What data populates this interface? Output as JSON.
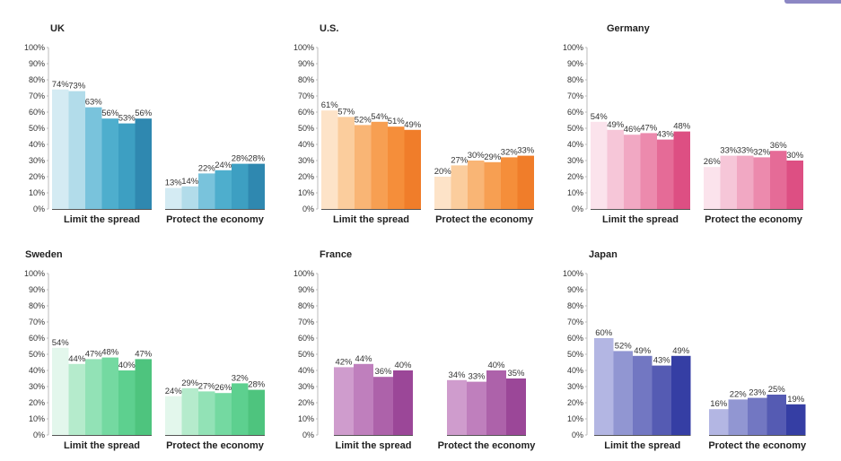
{
  "chart_data": [
    {
      "type": "bar",
      "title": "UK",
      "categories": [
        "Limit the spread",
        "Protect the economy"
      ],
      "values": [
        [
          74,
          73,
          63,
          56,
          53,
          56
        ],
        [
          13,
          14,
          22,
          24,
          28,
          28
        ]
      ],
      "value_labels": [
        [
          "74%",
          "73%",
          "63%",
          "56%",
          "53%",
          "56%"
        ],
        [
          "13%",
          "14%",
          "22%",
          "24%",
          "28%",
          "28%"
        ]
      ],
      "colors": [
        "#d4ebf3",
        "#b2dcea",
        "#79c3dc",
        "#4eaecd",
        "#3d9fc2",
        "#2f88b0"
      ],
      "yticks": [
        "0%",
        "10%",
        "20%",
        "30%",
        "40%",
        "50%",
        "60%",
        "70%",
        "80%",
        "90%",
        "100%"
      ],
      "ylim": [
        0,
        100
      ],
      "xlabel": "",
      "ylabel": ""
    },
    {
      "type": "bar",
      "title": "U.S.",
      "categories": [
        "Limit the spread",
        "Protect the economy"
      ],
      "values": [
        [
          61,
          57,
          52,
          54,
          51,
          49
        ],
        [
          20,
          27,
          30,
          29,
          32,
          33
        ]
      ],
      "value_labels": [
        [
          "61%",
          "57%",
          "52%",
          "54%",
          "51%",
          "49%"
        ],
        [
          "20%",
          "27%",
          "30%",
          "29%",
          "32%",
          "33%"
        ]
      ],
      "colors": [
        "#fde3c8",
        "#fbcd9d",
        "#f9b575",
        "#f79f52",
        "#f58e3a",
        "#f07d2a"
      ],
      "yticks": [
        "0%",
        "10%",
        "20%",
        "30%",
        "40%",
        "50%",
        "60%",
        "70%",
        "80%",
        "90%",
        "100%"
      ],
      "ylim": [
        0,
        100
      ],
      "xlabel": "",
      "ylabel": ""
    },
    {
      "type": "bar",
      "title": "Germany",
      "categories": [
        "Limit the spread",
        "Protect the economy"
      ],
      "values": [
        [
          54,
          49,
          46,
          47,
          43,
          48
        ],
        [
          26,
          33,
          33,
          32,
          36,
          30
        ]
      ],
      "value_labels": [
        [
          "54%",
          "49%",
          "46%",
          "47%",
          "43%",
          "48%"
        ],
        [
          "26%",
          "33%",
          "33%",
          "32%",
          "36%",
          "30%"
        ]
      ],
      "colors": [
        "#fbe3ec",
        "#f6c6d8",
        "#f1a8c3",
        "#ec8aad",
        "#e56b97",
        "#dd4f83"
      ],
      "yticks": [
        "0%",
        "10%",
        "20%",
        "30%",
        "40%",
        "50%",
        "60%",
        "70%",
        "80%",
        "90%",
        "100%"
      ],
      "ylim": [
        0,
        100
      ],
      "xlabel": "",
      "ylabel": ""
    },
    {
      "type": "bar",
      "title": "Sweden",
      "categories": [
        "Limit the spread",
        "Protect the economy"
      ],
      "values": [
        [
          54,
          44,
          47,
          48,
          40,
          47
        ],
        [
          24,
          29,
          27,
          26,
          32,
          28
        ]
      ],
      "value_labels": [
        [
          "54%",
          "44%",
          "47%",
          "48%",
          "40%",
          "47%"
        ],
        [
          "24%",
          "29%",
          "27%",
          "26%",
          "32%",
          "28%"
        ]
      ],
      "colors": [
        "#e3f7ec",
        "#b5ebcc",
        "#92e2b6",
        "#74d9a1",
        "#5dd08f",
        "#4ec47e"
      ],
      "yticks": [
        "0%",
        "10%",
        "20%",
        "30%",
        "40%",
        "50%",
        "60%",
        "70%",
        "80%",
        "90%",
        "100%"
      ],
      "ylim": [
        0,
        100
      ],
      "xlabel": "",
      "ylabel": ""
    },
    {
      "type": "bar",
      "title": "France",
      "categories": [
        "Limit the spread",
        "Protect the economy"
      ],
      "values": [
        [
          42,
          44,
          36,
          40
        ],
        [
          34,
          33,
          40,
          35
        ]
      ],
      "value_labels": [
        [
          "42%",
          "44%",
          "36%",
          "40%"
        ],
        [
          "34%",
          "33%",
          "40%",
          "35%"
        ]
      ],
      "colors": [
        "#cf9ccd",
        "#bf7fbd",
        "#ad62aa",
        "#9b4798"
      ],
      "yticks": [
        "0%",
        "10%",
        "20%",
        "30%",
        "40%",
        "50%",
        "60%",
        "70%",
        "80%",
        "90%",
        "100%"
      ],
      "ylim": [
        0,
        100
      ],
      "xlabel": "",
      "ylabel": ""
    },
    {
      "type": "bar",
      "title": "Japan",
      "categories": [
        "Limit the spread",
        "Protect the economy"
      ],
      "values": [
        [
          60,
          52,
          49,
          43,
          49
        ],
        [
          16,
          22,
          23,
          25,
          19
        ]
      ],
      "value_labels": [
        [
          "60%",
          "52%",
          "49%",
          "43%",
          "49%"
        ],
        [
          "16%",
          "22%",
          "23%",
          "25%",
          "19%"
        ]
      ],
      "colors": [
        "#b3b6e3",
        "#9196d2",
        "#7277c2",
        "#555bb3",
        "#353ea4"
      ],
      "yticks": [
        "0%",
        "10%",
        "20%",
        "30%",
        "40%",
        "50%",
        "60%",
        "70%",
        "80%",
        "90%",
        "100%"
      ],
      "ylim": [
        0,
        100
      ],
      "xlabel": "",
      "ylabel": ""
    }
  ]
}
